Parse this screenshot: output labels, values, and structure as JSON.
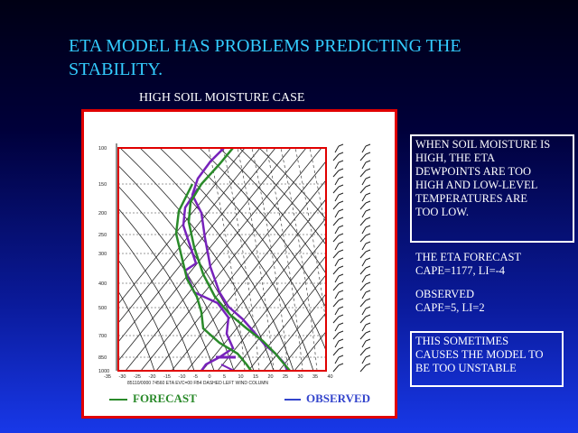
{
  "slide": {
    "title_line1": "ETA MODEL HAS PROBLEMS PREDICTING THE",
    "title_line2": "STABILITY.",
    "subtitle": "HIGH SOIL MOISTURE CASE",
    "notes": {
      "box1_lines": [
        "WHEN SOIL MOISTURE IS",
        "HIGH, THE ETA",
        "DEWPOINTS ARE TOO",
        "HIGH AND LOW-LEVEL",
        "TEMPERATURES ARE",
        "TOO LOW."
      ],
      "forecast_lines": [
        "THE ETA FORECAST",
        "CAPE=1177, LI=-4"
      ],
      "observed_lines": [
        "OBSERVED",
        "CAPE=5,  LI=2"
      ],
      "box2_lines": [
        "THIS SOMETIMES",
        "CAUSES THE MODEL TO",
        "BE TOO UNSTABLE"
      ]
    },
    "legend": {
      "forecast": "FORECAST",
      "observed": "OBSERVED",
      "forecast_color": "#2a8a2a",
      "observed_color": "#7722bb"
    }
  },
  "diagram": {
    "pressure_labels": [
      "100",
      "150",
      "200",
      "250",
      "300",
      "400",
      "500",
      "700",
      "850",
      "1000"
    ],
    "temp_labels": [
      "-35",
      "-30",
      "-25",
      "-20",
      "-15",
      "-10",
      "-5",
      "0",
      "5",
      "10",
      "15",
      "20",
      "25",
      "30",
      "35",
      "40"
    ],
    "footer_text": "85110/0000 74560 ETA EVC=00 FB4 DASHED LEFT WIND COLUMN"
  }
}
